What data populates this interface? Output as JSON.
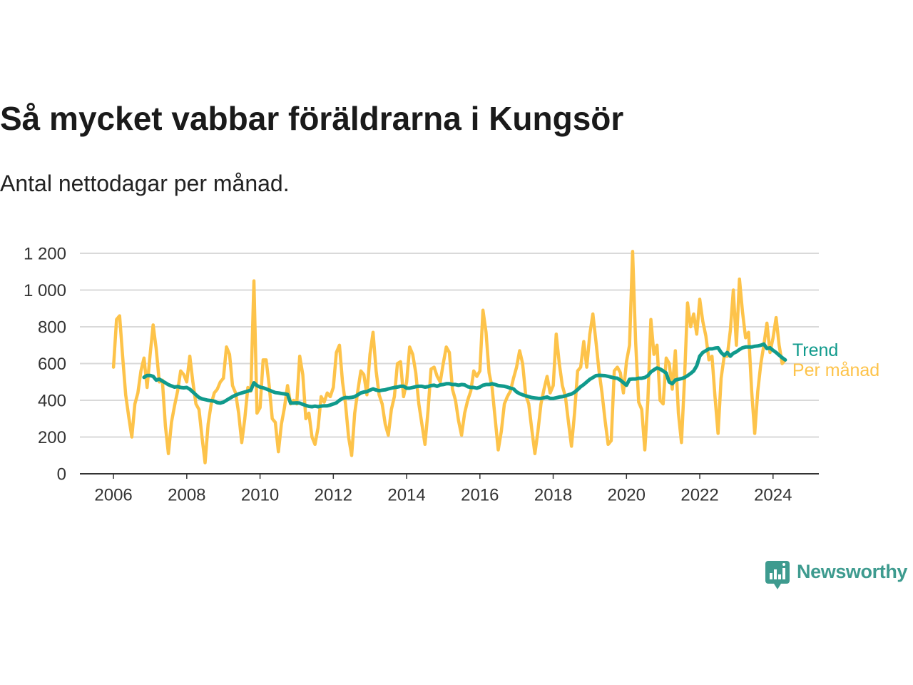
{
  "logo": {
    "text": "Newsworthy",
    "icon": "newsworthy-logo-icon",
    "color": "#3E9B8F"
  },
  "chart_data": {
    "type": "line",
    "title": "Så mycket vabbar föräldrarna i Kungsör",
    "subtitle": "Antal nettodagar per månad.",
    "x": [
      "2006-01",
      "2006-02",
      "2006-03",
      "2006-04",
      "2006-05",
      "2006-06",
      "2006-07",
      "2006-08",
      "2006-09",
      "2006-10",
      "2006-11",
      "2006-12",
      "2007-01",
      "2007-02",
      "2007-03",
      "2007-04",
      "2007-05",
      "2007-06",
      "2007-07",
      "2007-08",
      "2007-09",
      "2007-10",
      "2007-11",
      "2007-12",
      "2008-01",
      "2008-02",
      "2008-03",
      "2008-04",
      "2008-05",
      "2008-06",
      "2008-07",
      "2008-08",
      "2008-09",
      "2008-10",
      "2008-11",
      "2008-12",
      "2009-01",
      "2009-02",
      "2009-03",
      "2009-04",
      "2009-05",
      "2009-06",
      "2009-07",
      "2009-08",
      "2009-09",
      "2009-10",
      "2009-11",
      "2009-12",
      "2010-01",
      "2010-02",
      "2010-03",
      "2010-04",
      "2010-05",
      "2010-06",
      "2010-07",
      "2010-08",
      "2010-09",
      "2010-10",
      "2010-11",
      "2010-12",
      "2011-01",
      "2011-02",
      "2011-03",
      "2011-04",
      "2011-05",
      "2011-06",
      "2011-07",
      "2011-08",
      "2011-09",
      "2011-10",
      "2011-11",
      "2011-12",
      "2012-01",
      "2012-02",
      "2012-03",
      "2012-04",
      "2012-05",
      "2012-06",
      "2012-07",
      "2012-08",
      "2012-09",
      "2012-10",
      "2012-11",
      "2012-12",
      "2013-01",
      "2013-02",
      "2013-03",
      "2013-04",
      "2013-05",
      "2013-06",
      "2013-07",
      "2013-08",
      "2013-09",
      "2013-10",
      "2013-11",
      "2013-12",
      "2014-01",
      "2014-02",
      "2014-03",
      "2014-04",
      "2014-05",
      "2014-06",
      "2014-07",
      "2014-08",
      "2014-09",
      "2014-10",
      "2014-11",
      "2014-12",
      "2015-01",
      "2015-02",
      "2015-03",
      "2015-04",
      "2015-05",
      "2015-06",
      "2015-07",
      "2015-08",
      "2015-09",
      "2015-10",
      "2015-11",
      "2015-12",
      "2016-01",
      "2016-02",
      "2016-03",
      "2016-04",
      "2016-05",
      "2016-06",
      "2016-07",
      "2016-08",
      "2016-09",
      "2016-10",
      "2016-11",
      "2016-12",
      "2017-01",
      "2017-02",
      "2017-03",
      "2017-04",
      "2017-05",
      "2017-06",
      "2017-07",
      "2017-08",
      "2017-09",
      "2017-10",
      "2017-11",
      "2017-12",
      "2018-01",
      "2018-02",
      "2018-03",
      "2018-04",
      "2018-05",
      "2018-06",
      "2018-07",
      "2018-08",
      "2018-09",
      "2018-10",
      "2018-11",
      "2018-12",
      "2019-01",
      "2019-02",
      "2019-03",
      "2019-04",
      "2019-05",
      "2019-06",
      "2019-07",
      "2019-08",
      "2019-09",
      "2019-10",
      "2019-11",
      "2019-12",
      "2020-01",
      "2020-02",
      "2020-03",
      "2020-04",
      "2020-05",
      "2020-06",
      "2020-07",
      "2020-08",
      "2020-09",
      "2020-10",
      "2020-11",
      "2020-12",
      "2021-01",
      "2021-02",
      "2021-03",
      "2021-04",
      "2021-05",
      "2021-06",
      "2021-07",
      "2021-08",
      "2021-09",
      "2021-10",
      "2021-11",
      "2021-12",
      "2022-01",
      "2022-02",
      "2022-03",
      "2022-04",
      "2022-05",
      "2022-06",
      "2022-07",
      "2022-08",
      "2022-09",
      "2022-10",
      "2022-11",
      "2022-12",
      "2023-01",
      "2023-02",
      "2023-03",
      "2023-04",
      "2023-05",
      "2023-06",
      "2023-07",
      "2023-08",
      "2023-09",
      "2023-10",
      "2023-11",
      "2023-12",
      "2024-01",
      "2024-02",
      "2024-03",
      "2024-04",
      "2024-05"
    ],
    "series": [
      {
        "name": "Trend",
        "color": "#109A8C",
        "values": [
          null,
          null,
          null,
          null,
          null,
          null,
          null,
          null,
          null,
          null,
          525,
          535,
          535,
          530,
          510,
          515,
          505,
          495,
          485,
          478,
          472,
          475,
          470,
          468,
          470,
          460,
          445,
          430,
          415,
          408,
          404,
          400,
          398,
          395,
          387,
          385,
          390,
          400,
          410,
          420,
          428,
          435,
          440,
          445,
          450,
          455,
          495,
          480,
          472,
          468,
          462,
          455,
          448,
          442,
          440,
          437,
          435,
          432,
          385,
          385,
          386,
          385,
          378,
          372,
          367,
          365,
          368,
          365,
          368,
          370,
          370,
          374,
          380,
          386,
          400,
          410,
          415,
          414,
          416,
          420,
          430,
          440,
          445,
          447,
          455,
          462,
          456,
          452,
          455,
          457,
          462,
          466,
          470,
          472,
          476,
          476,
          466,
          466,
          470,
          474,
          476,
          476,
          472,
          474,
          480,
          482,
          476,
          484,
          486,
          490,
          490,
          486,
          486,
          482,
          486,
          484,
          474,
          470,
          470,
          466,
          472,
          482,
          486,
          486,
          490,
          486,
          480,
          478,
          476,
          472,
          466,
          462,
          446,
          436,
          430,
          424,
          420,
          415,
          413,
          411,
          410,
          414,
          418,
          410,
          410,
          414,
          418,
          420,
          424,
          430,
          434,
          444,
          458,
          474,
          486,
          500,
          514,
          524,
          534,
          536,
          535,
          534,
          530,
          526,
          522,
          520,
          510,
          496,
          482,
          514,
          516,
          516,
          520,
          520,
          524,
          534,
          554,
          566,
          576,
          570,
          560,
          548,
          500,
          490,
          510,
          514,
          518,
          524,
          534,
          546,
          560,
          588,
          640,
          660,
          670,
          680,
          680,
          684,
          686,
          660,
          644,
          660,
          640,
          656,
          664,
          676,
          686,
          690,
          690,
          690,
          694,
          696,
          700,
          706,
          682,
          686,
          672,
          660,
          646,
          632,
          620
        ]
      },
      {
        "name": "Per månad",
        "color": "#FDC34A",
        "values": [
          580,
          840,
          860,
          640,
          430,
          310,
          200,
          380,
          440,
          560,
          630,
          470,
          650,
          810,
          680,
          500,
          510,
          260,
          110,
          280,
          370,
          450,
          560,
          540,
          500,
          640,
          500,
          380,
          350,
          200,
          60,
          270,
          380,
          440,
          460,
          500,
          520,
          690,
          650,
          480,
          440,
          330,
          170,
          300,
          470,
          450,
          1050,
          330,
          360,
          620,
          620,
          480,
          300,
          280,
          120,
          270,
          360,
          480,
          380,
          400,
          380,
          640,
          540,
          300,
          330,
          200,
          160,
          250,
          420,
          390,
          440,
          420,
          470,
          660,
          700,
          500,
          380,
          200,
          100,
          330,
          450,
          560,
          540,
          430,
          650,
          770,
          560,
          430,
          380,
          270,
          210,
          350,
          420,
          600,
          610,
          420,
          500,
          690,
          650,
          550,
          380,
          270,
          160,
          340,
          570,
          580,
          530,
          500,
          600,
          690,
          660,
          460,
          400,
          290,
          210,
          330,
          400,
          450,
          560,
          530,
          560,
          890,
          770,
          550,
          470,
          300,
          130,
          230,
          380,
          420,
          450,
          520,
          580,
          670,
          600,
          430,
          380,
          240,
          110,
          230,
          380,
          460,
          530,
          440,
          480,
          760,
          600,
          480,
          420,
          280,
          150,
          330,
          560,
          580,
          720,
          580,
          760,
          870,
          720,
          560,
          440,
          290,
          160,
          180,
          560,
          580,
          550,
          440,
          610,
          700,
          1210,
          720,
          390,
          350,
          130,
          400,
          840,
          650,
          700,
          400,
          380,
          630,
          600,
          460,
          670,
          330,
          170,
          510,
          930,
          800,
          870,
          760,
          950,
          830,
          750,
          620,
          640,
          420,
          220,
          520,
          640,
          640,
          780,
          1000,
          700,
          1060,
          880,
          740,
          770,
          450,
          220,
          450,
          600,
          700,
          820,
          660,
          740,
          850,
          700,
          600,
          620
        ]
      }
    ],
    "xlim": [
      "2005-02",
      "2025-04"
    ],
    "ylim": [
      0,
      1200
    ],
    "xticks": [
      "2006",
      "2008",
      "2010",
      "2012",
      "2014",
      "2016",
      "2018",
      "2020",
      "2022",
      "2024"
    ],
    "yticks": [
      0,
      200,
      400,
      600,
      800,
      1000,
      1200
    ],
    "ytick_labels": [
      "0",
      "200",
      "400",
      "600",
      "800",
      "1 000",
      "1 200"
    ],
    "grid": {
      "x": false,
      "y": true
    },
    "legend": "right"
  }
}
